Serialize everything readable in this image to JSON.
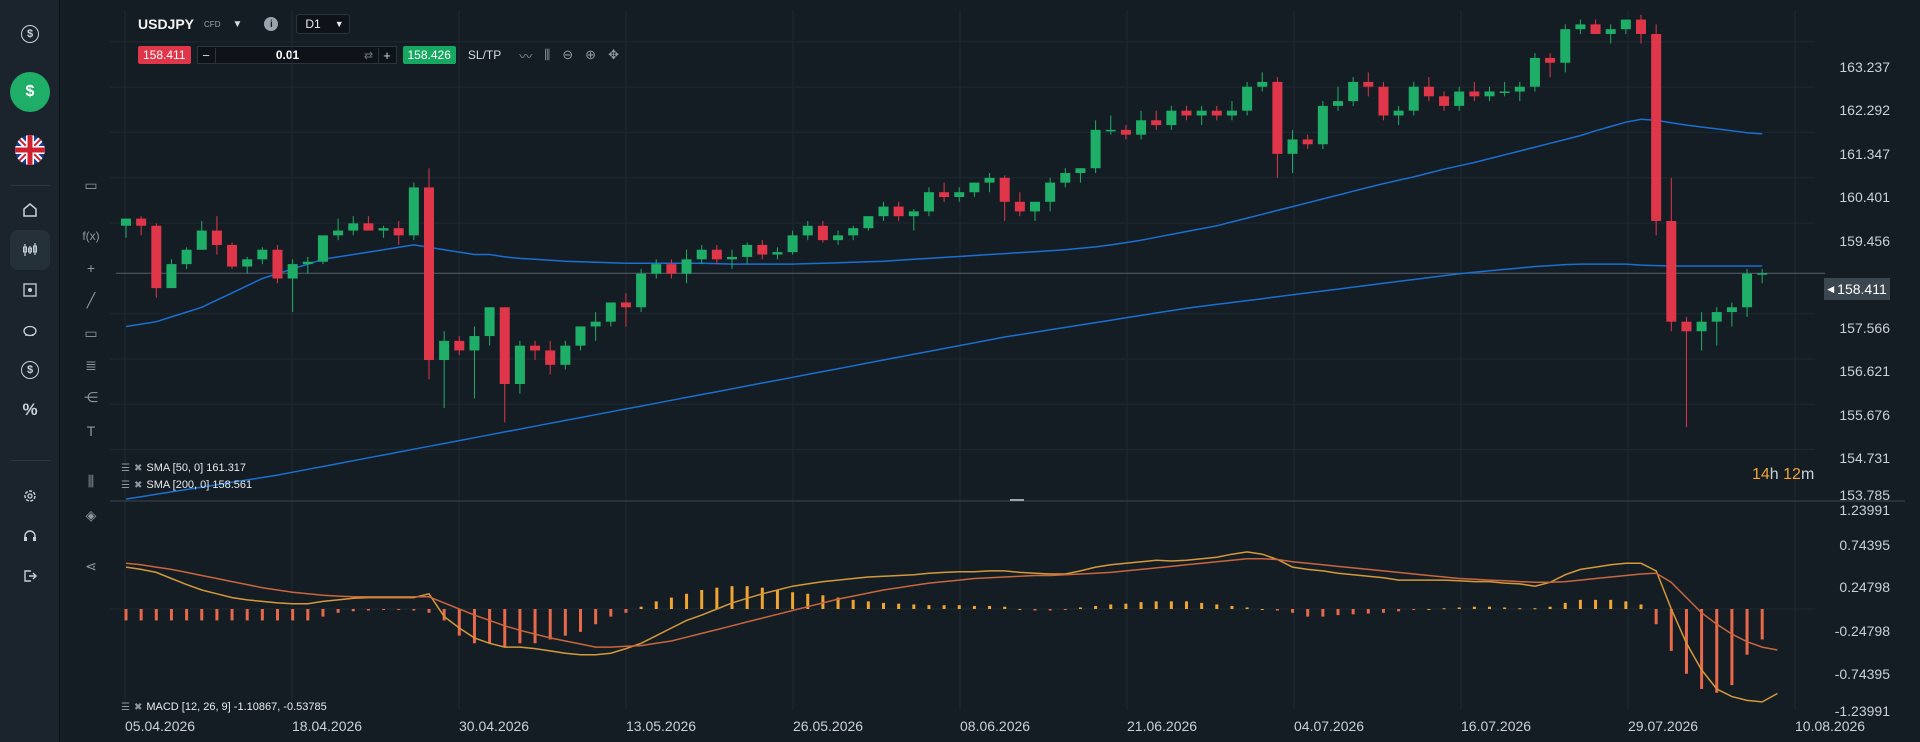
{
  "instrument": {
    "symbol": "USDJPY",
    "type_badge": "CFD",
    "timeframe": "D1"
  },
  "trade": {
    "sell_price": "158.411",
    "buy_price": "158.426",
    "quantity": "0.01",
    "sltp_label": "SL/TP",
    "minus": "−",
    "plus": "+"
  },
  "price_axis": [
    "163.237",
    "162.292",
    "161.347",
    "160.401",
    "159.456",
    "158.411",
    "157.566",
    "156.621",
    "155.676",
    "154.731",
    "153.785"
  ],
  "macd_axis": [
    "1.23991",
    "0.74395",
    "0.24798",
    "-0.24798",
    "-0.74395",
    "-1.23991"
  ],
  "date_axis": [
    "05.04.2026",
    "18.04.2026",
    "30.04.2026",
    "13.05.2026",
    "26.05.2026",
    "08.06.2026",
    "21.06.2026",
    "04.07.2026",
    "16.07.2026",
    "29.07.2026",
    "10.08.2026"
  ],
  "current_price": "158.411",
  "countdown": {
    "hours": "14",
    "h_unit": "h",
    "minutes": "12",
    "m_unit": "m"
  },
  "legends": {
    "sma50": "SMA [50, 0] 161.317",
    "sma200": "SMA [200, 0] 158.561",
    "macd": "MACD [12, 26, 9] -1.10867, -0.53785"
  },
  "colors": {
    "bull": "#1fae68",
    "bear": "#e0364a",
    "sma": "#1a6fd1",
    "macd_line": "#d49a3a",
    "signal_line": "#c8663e",
    "hist_pos": "#f0a431",
    "hist_neg": "#e8684a"
  },
  "chart_data": {
    "type": "candlestick",
    "ylim": [
      153.785,
      163.7
    ],
    "candles": [
      [
        159.4,
        159.55,
        159.15,
        159.55
      ],
      [
        159.55,
        159.6,
        159.2,
        159.4
      ],
      [
        159.4,
        159.45,
        157.9,
        158.1
      ],
      [
        158.1,
        158.7,
        158.1,
        158.6
      ],
      [
        158.6,
        158.95,
        158.5,
        158.9
      ],
      [
        158.9,
        159.5,
        158.9,
        159.3
      ],
      [
        159.3,
        159.6,
        158.8,
        159.0
      ],
      [
        159.0,
        159.05,
        158.5,
        158.55
      ],
      [
        158.55,
        158.75,
        158.4,
        158.7
      ],
      [
        158.7,
        158.95,
        158.6,
        158.9
      ],
      [
        158.9,
        159.0,
        158.2,
        158.3
      ],
      [
        158.3,
        158.7,
        157.6,
        158.6
      ],
      [
        158.6,
        158.75,
        158.4,
        158.65
      ],
      [
        158.65,
        159.2,
        158.6,
        159.2
      ],
      [
        159.2,
        159.55,
        159.1,
        159.3
      ],
      [
        159.3,
        159.6,
        159.2,
        159.45
      ],
      [
        159.45,
        159.6,
        159.3,
        159.3
      ],
      [
        159.3,
        159.4,
        159.15,
        159.35
      ],
      [
        159.35,
        159.5,
        159.0,
        159.2
      ],
      [
        159.2,
        160.3,
        159.1,
        160.2
      ],
      [
        160.2,
        160.6,
        156.2,
        156.6
      ],
      [
        156.6,
        157.2,
        155.6,
        157.0
      ],
      [
        157.0,
        157.1,
        156.7,
        156.8
      ],
      [
        156.8,
        157.3,
        155.8,
        157.1
      ],
      [
        157.1,
        157.7,
        156.9,
        157.7
      ],
      [
        157.7,
        157.7,
        155.3,
        156.1
      ],
      [
        156.1,
        157.0,
        155.9,
        156.9
      ],
      [
        156.9,
        157.0,
        156.6,
        156.8
      ],
      [
        156.8,
        157.0,
        156.3,
        156.5
      ],
      [
        156.5,
        157.0,
        156.4,
        156.9
      ],
      [
        156.9,
        157.3,
        156.8,
        157.3
      ],
      [
        157.3,
        157.6,
        157.0,
        157.4
      ],
      [
        157.4,
        157.8,
        157.3,
        157.8
      ],
      [
        157.8,
        158.0,
        157.3,
        157.7
      ],
      [
        157.7,
        158.5,
        157.6,
        158.4
      ],
      [
        158.4,
        158.7,
        158.3,
        158.6
      ],
      [
        158.6,
        158.7,
        158.3,
        158.4
      ],
      [
        158.4,
        158.9,
        158.2,
        158.7
      ],
      [
        158.7,
        159.0,
        158.6,
        158.9
      ],
      [
        158.9,
        159.0,
        158.6,
        158.7
      ],
      [
        158.7,
        158.9,
        158.5,
        158.75
      ],
      [
        158.75,
        159.05,
        158.6,
        159.0
      ],
      [
        159.0,
        159.1,
        158.7,
        158.8
      ],
      [
        158.8,
        158.95,
        158.7,
        158.85
      ],
      [
        158.85,
        159.3,
        158.8,
        159.2
      ],
      [
        159.2,
        159.5,
        159.1,
        159.4
      ],
      [
        159.4,
        159.5,
        159.05,
        159.1
      ],
      [
        159.1,
        159.3,
        159.0,
        159.2
      ],
      [
        159.2,
        159.4,
        159.1,
        159.35
      ],
      [
        159.35,
        159.6,
        159.3,
        159.6
      ],
      [
        159.6,
        159.9,
        159.5,
        159.8
      ],
      [
        159.8,
        159.9,
        159.5,
        159.6
      ],
      [
        159.6,
        159.75,
        159.3,
        159.7
      ],
      [
        159.7,
        160.2,
        159.6,
        160.1
      ],
      [
        160.1,
        160.3,
        159.9,
        160.0
      ],
      [
        160.0,
        160.2,
        159.9,
        160.1
      ],
      [
        160.1,
        160.3,
        160.0,
        160.3
      ],
      [
        160.3,
        160.5,
        160.1,
        160.4
      ],
      [
        160.4,
        160.45,
        159.5,
        159.9
      ],
      [
        159.9,
        160.1,
        159.6,
        159.7
      ],
      [
        159.7,
        159.9,
        159.5,
        159.9
      ],
      [
        159.9,
        160.4,
        159.7,
        160.3
      ],
      [
        160.3,
        160.6,
        160.2,
        160.5
      ],
      [
        160.5,
        160.6,
        160.3,
        160.6
      ],
      [
        160.6,
        161.6,
        160.5,
        161.4
      ],
      [
        161.4,
        161.7,
        161.3,
        161.4
      ],
      [
        161.4,
        161.5,
        161.2,
        161.3
      ],
      [
        161.3,
        161.8,
        161.2,
        161.6
      ],
      [
        161.6,
        161.8,
        161.4,
        161.5
      ],
      [
        161.5,
        161.9,
        161.4,
        161.8
      ],
      [
        161.8,
        161.9,
        161.6,
        161.7
      ],
      [
        161.7,
        161.9,
        161.5,
        161.8
      ],
      [
        161.8,
        161.9,
        161.6,
        161.7
      ],
      [
        161.7,
        162.0,
        161.6,
        161.8
      ],
      [
        161.8,
        162.4,
        161.7,
        162.3
      ],
      [
        162.3,
        162.6,
        162.2,
        162.4
      ],
      [
        162.4,
        162.5,
        160.4,
        160.9
      ],
      [
        160.9,
        161.4,
        160.5,
        161.2
      ],
      [
        161.2,
        161.3,
        161.0,
        161.1
      ],
      [
        161.1,
        162.0,
        161.0,
        161.9
      ],
      [
        161.9,
        162.3,
        161.8,
        162.0
      ],
      [
        162.0,
        162.5,
        161.9,
        162.4
      ],
      [
        162.4,
        162.6,
        162.1,
        162.3
      ],
      [
        162.3,
        162.4,
        161.6,
        161.7
      ],
      [
        161.7,
        161.9,
        161.5,
        161.8
      ],
      [
        161.8,
        162.4,
        161.7,
        162.3
      ],
      [
        162.3,
        162.5,
        162.0,
        162.1
      ],
      [
        162.1,
        162.2,
        161.8,
        161.9
      ],
      [
        161.9,
        162.3,
        161.8,
        162.2
      ],
      [
        162.2,
        162.4,
        162.0,
        162.1
      ],
      [
        162.1,
        162.3,
        162.0,
        162.2
      ],
      [
        162.2,
        162.4,
        162.1,
        162.2
      ],
      [
        162.2,
        162.4,
        162.0,
        162.3
      ],
      [
        162.3,
        163.0,
        162.2,
        162.9
      ],
      [
        162.9,
        163.0,
        162.5,
        162.8
      ],
      [
        162.8,
        163.6,
        162.6,
        163.5
      ],
      [
        163.5,
        163.7,
        163.4,
        163.6
      ],
      [
        163.6,
        163.7,
        163.4,
        163.4
      ],
      [
        163.4,
        163.6,
        163.2,
        163.5
      ],
      [
        163.5,
        163.7,
        163.4,
        163.7
      ],
      [
        163.7,
        163.8,
        163.2,
        163.4
      ],
      [
        163.4,
        163.6,
        159.2,
        159.5
      ],
      [
        159.5,
        160.4,
        157.2,
        157.4
      ],
      [
        157.4,
        157.5,
        155.2,
        157.2
      ],
      [
        157.2,
        157.6,
        156.8,
        157.4
      ],
      [
        157.4,
        157.7,
        156.9,
        157.6
      ],
      [
        157.6,
        157.8,
        157.3,
        157.7
      ],
      [
        157.7,
        158.5,
        157.5,
        158.4
      ],
      [
        158.4,
        158.5,
        158.2,
        158.41
      ]
    ],
    "sma50": [
      157.3,
      157.35,
      157.4,
      157.5,
      157.6,
      157.7,
      157.85,
      158.0,
      158.15,
      158.3,
      158.4,
      158.5,
      158.6,
      158.7,
      158.75,
      158.8,
      158.85,
      158.9,
      158.95,
      159.0,
      158.95,
      158.9,
      158.85,
      158.8,
      158.8,
      158.75,
      158.72,
      158.7,
      158.68,
      158.66,
      158.65,
      158.64,
      158.63,
      158.62,
      158.62,
      158.62,
      158.62,
      158.62,
      158.62,
      158.61,
      158.6,
      158.6,
      158.6,
      158.6,
      158.6,
      158.61,
      158.62,
      158.63,
      158.64,
      158.65,
      158.66,
      158.68,
      158.7,
      158.72,
      158.74,
      158.76,
      158.78,
      158.8,
      158.82,
      158.84,
      158.86,
      158.88,
      158.9,
      158.93,
      158.96,
      159.0,
      159.05,
      159.1,
      159.16,
      159.22,
      159.28,
      159.34,
      159.4,
      159.48,
      159.56,
      159.64,
      159.72,
      159.8,
      159.88,
      159.96,
      160.04,
      160.12,
      160.2,
      160.28,
      160.35,
      160.42,
      160.5,
      160.58,
      160.65,
      160.72,
      160.8,
      160.88,
      160.96,
      161.04,
      161.12,
      161.2,
      161.28,
      161.38,
      161.47,
      161.56,
      161.62,
      161.6,
      161.55,
      161.5,
      161.46,
      161.42,
      161.38,
      161.34,
      161.317
    ],
    "sma200": [
      153.7,
      153.75,
      153.8,
      153.85,
      153.9,
      153.95,
      154.0,
      154.05,
      154.1,
      154.15,
      154.2,
      154.26,
      154.32,
      154.38,
      154.44,
      154.5,
      154.56,
      154.62,
      154.68,
      154.74,
      154.8,
      154.86,
      154.92,
      154.98,
      155.04,
      155.1,
      155.16,
      155.22,
      155.28,
      155.34,
      155.4,
      155.46,
      155.52,
      155.58,
      155.64,
      155.7,
      155.76,
      155.82,
      155.88,
      155.94,
      156.0,
      156.06,
      156.12,
      156.18,
      156.24,
      156.3,
      156.36,
      156.42,
      156.48,
      156.54,
      156.6,
      156.66,
      156.72,
      156.78,
      156.84,
      156.9,
      156.96,
      157.02,
      157.08,
      157.13,
      157.18,
      157.23,
      157.28,
      157.33,
      157.38,
      157.43,
      157.48,
      157.53,
      157.58,
      157.63,
      157.68,
      157.72,
      157.76,
      157.8,
      157.84,
      157.88,
      157.92,
      157.96,
      158.0,
      158.04,
      158.08,
      158.12,
      158.16,
      158.2,
      158.24,
      158.28,
      158.32,
      158.36,
      158.4,
      158.43,
      158.46,
      158.49,
      158.52,
      158.55,
      158.57,
      158.59,
      158.6,
      158.6,
      158.6,
      158.6,
      158.58,
      158.57,
      158.56,
      158.56,
      158.56,
      158.56,
      158.56,
      158.56,
      158.561
    ],
    "macd_hist": [
      -0.15,
      -0.15,
      -0.15,
      -0.15,
      -0.15,
      -0.15,
      -0.15,
      -0.15,
      -0.15,
      -0.15,
      -0.15,
      -0.15,
      -0.15,
      -0.1,
      -0.05,
      -0.03,
      -0.02,
      -0.01,
      -0.01,
      -0.02,
      -0.05,
      -0.15,
      -0.35,
      -0.45,
      -0.45,
      -0.5,
      -0.45,
      -0.45,
      -0.4,
      -0.35,
      -0.3,
      -0.2,
      -0.1,
      -0.05,
      0.03,
      0.1,
      0.15,
      0.2,
      0.25,
      0.28,
      0.3,
      0.3,
      0.28,
      0.25,
      0.22,
      0.2,
      0.18,
      0.15,
      0.12,
      0.1,
      0.08,
      0.07,
      0.06,
      0.05,
      0.05,
      0.05,
      0.04,
      0.04,
      0.03,
      0.0,
      -0.02,
      -0.02,
      -0.01,
      0.02,
      0.04,
      0.06,
      0.07,
      0.09,
      0.1,
      0.1,
      0.1,
      0.08,
      0.06,
      0.04,
      0.02,
      0.0,
      -0.02,
      -0.05,
      -0.1,
      -0.1,
      -0.08,
      -0.07,
      -0.06,
      -0.05,
      -0.03,
      -0.01,
      0.0,
      0.01,
      0.02,
      0.03,
      0.03,
      0.02,
      0.01,
      0.01,
      0.03,
      0.08,
      0.12,
      0.12,
      0.12,
      0.1,
      0.06,
      -0.2,
      -0.55,
      -0.85,
      -1.05,
      -1.1,
      -1.0,
      -0.6,
      -0.4
    ],
    "macd_line": [
      0.55,
      0.52,
      0.48,
      0.4,
      0.32,
      0.25,
      0.2,
      0.15,
      0.12,
      0.1,
      0.08,
      0.07,
      0.07,
      0.1,
      0.12,
      0.14,
      0.15,
      0.15,
      0.15,
      0.15,
      0.2,
      -0.1,
      -0.25,
      -0.38,
      -0.45,
      -0.5,
      -0.5,
      -0.52,
      -0.55,
      -0.58,
      -0.6,
      -0.6,
      -0.58,
      -0.52,
      -0.45,
      -0.35,
      -0.25,
      -0.15,
      -0.08,
      0.0,
      0.08,
      0.14,
      0.2,
      0.25,
      0.3,
      0.33,
      0.36,
      0.38,
      0.4,
      0.42,
      0.43,
      0.44,
      0.45,
      0.47,
      0.48,
      0.49,
      0.49,
      0.5,
      0.5,
      0.48,
      0.47,
      0.46,
      0.46,
      0.5,
      0.55,
      0.58,
      0.6,
      0.62,
      0.64,
      0.63,
      0.64,
      0.66,
      0.68,
      0.72,
      0.75,
      0.72,
      0.65,
      0.55,
      0.52,
      0.5,
      0.47,
      0.45,
      0.43,
      0.41,
      0.38,
      0.38,
      0.38,
      0.38,
      0.37,
      0.36,
      0.36,
      0.34,
      0.33,
      0.3,
      0.35,
      0.45,
      0.52,
      0.55,
      0.58,
      0.6,
      0.6,
      0.5,
      0.0,
      -0.45,
      -0.8,
      -1.05,
      -1.15,
      -1.2,
      -1.22,
      -1.109
    ],
    "signal_line": [
      0.6,
      0.58,
      0.55,
      0.52,
      0.48,
      0.44,
      0.4,
      0.36,
      0.32,
      0.28,
      0.25,
      0.22,
      0.2,
      0.18,
      0.17,
      0.16,
      0.16,
      0.16,
      0.16,
      0.16,
      0.16,
      0.08,
      0.0,
      -0.08,
      -0.15,
      -0.22,
      -0.28,
      -0.33,
      -0.38,
      -0.42,
      -0.46,
      -0.5,
      -0.5,
      -0.49,
      -0.48,
      -0.45,
      -0.42,
      -0.37,
      -0.32,
      -0.27,
      -0.22,
      -0.17,
      -0.12,
      -0.07,
      -0.02,
      0.03,
      0.08,
      0.13,
      0.17,
      0.21,
      0.25,
      0.28,
      0.31,
      0.34,
      0.36,
      0.38,
      0.4,
      0.41,
      0.42,
      0.43,
      0.44,
      0.44,
      0.45,
      0.46,
      0.47,
      0.48,
      0.5,
      0.52,
      0.54,
      0.56,
      0.58,
      0.6,
      0.62,
      0.64,
      0.66,
      0.66,
      0.65,
      0.62,
      0.6,
      0.58,
      0.56,
      0.54,
      0.52,
      0.5,
      0.48,
      0.46,
      0.44,
      0.42,
      0.4,
      0.39,
      0.38,
      0.37,
      0.36,
      0.35,
      0.35,
      0.36,
      0.38,
      0.4,
      0.42,
      0.44,
      0.46,
      0.47,
      0.35,
      0.15,
      -0.05,
      -0.2,
      -0.33,
      -0.43,
      -0.5,
      -0.538
    ]
  }
}
